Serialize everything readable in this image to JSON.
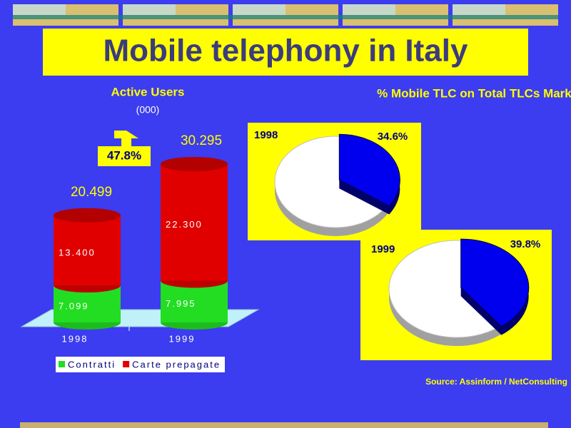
{
  "title": "Mobile telephony in Italy",
  "source": "Source: Assinform / NetConsulting",
  "chart_data": [
    {
      "type": "bar",
      "title": "Active Users",
      "subtitle": "(000)",
      "categories": [
        "1998",
        "1999"
      ],
      "series": [
        {
          "name": "Contratti",
          "color": "#22dd22",
          "values": [
            7099,
            7995
          ],
          "value_labels": [
            "7.099",
            "7.995"
          ]
        },
        {
          "name": "Carte prepagate",
          "color": "#e00000",
          "values": [
            13400,
            22300
          ],
          "value_labels": [
            "13.400",
            "22.300"
          ]
        }
      ],
      "totals": [
        20499,
        30295
      ],
      "total_labels": [
        "20.499",
        "30.295"
      ],
      "annotation": "47.8%"
    },
    {
      "type": "pie",
      "title": "% Mobile TLC on Total TLCs Market",
      "categories": [
        "1998",
        "1999"
      ],
      "values": [
        34.6,
        39.8
      ],
      "value_labels": [
        "34.6%",
        "39.8%"
      ],
      "color": "#0000ee"
    }
  ]
}
